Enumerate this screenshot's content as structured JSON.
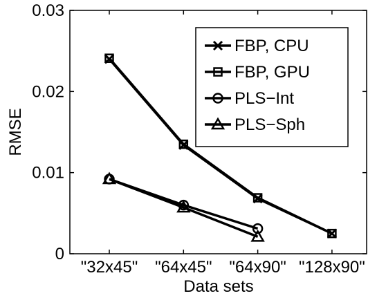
{
  "chart_data": {
    "type": "line",
    "title": "",
    "xlabel": "Data sets",
    "ylabel": "RMSE",
    "categories": [
      "\"32x45\"",
      "\"64x45\"",
      "\"64x90\"",
      "\"128x90\""
    ],
    "ylim": [
      0,
      0.03
    ],
    "yticks": [
      0,
      0.01,
      0.02,
      0.03
    ],
    "ytick_labels": [
      "0",
      "0.01",
      "0.02",
      "0.03"
    ],
    "grid": false,
    "legend_position": "top-right",
    "series": [
      {
        "name": "FBP, CPU",
        "marker": "x",
        "values": [
          0.024,
          0.0134,
          0.0068,
          0.0025
        ],
        "color": "#000000"
      },
      {
        "name": "FBP, GPU",
        "marker": "square",
        "values": [
          0.0241,
          0.0135,
          0.0069,
          0.0025
        ],
        "color": "#000000"
      },
      {
        "name": "PLS−Int",
        "marker": "circle",
        "values": [
          0.0092,
          0.006,
          0.0031,
          null
        ],
        "color": "#000000"
      },
      {
        "name": "PLS−Sph",
        "marker": "triangle",
        "values": [
          0.0092,
          0.0057,
          0.0021,
          null
        ],
        "color": "#000000"
      }
    ]
  }
}
